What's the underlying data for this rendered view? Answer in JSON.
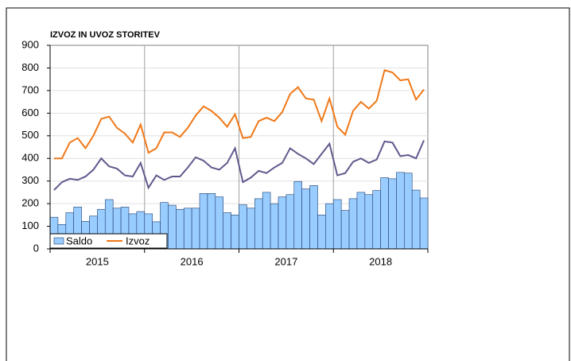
{
  "chart_data": {
    "type": "bar-line",
    "title": "IZVOZ IN UVOZ STORITEV",
    "groups": [
      "2015",
      "2016",
      "2017",
      "2018"
    ],
    "ylim": [
      0,
      900
    ],
    "yticks": [
      0,
      100,
      200,
      300,
      400,
      500,
      600,
      700,
      800,
      900
    ],
    "grid": true,
    "legend": "bottom-left",
    "series": [
      {
        "name": "Saldo",
        "kind": "bar",
        "color": "#99ccff",
        "values": [
          140,
          108,
          160,
          185,
          122,
          145,
          175,
          218,
          180,
          185,
          155,
          165,
          155,
          120,
          205,
          193,
          175,
          180,
          180,
          245,
          245,
          230,
          160,
          150,
          195,
          180,
          222,
          250,
          200,
          230,
          240,
          298,
          265,
          280,
          150,
          200,
          218,
          170,
          222,
          250,
          240,
          258,
          315,
          310,
          338,
          335,
          260,
          225
        ]
      },
      {
        "name": "Izvoz",
        "kind": "line",
        "color": "#f07818",
        "values": [
          400,
          400,
          470,
          490,
          445,
          500,
          575,
          585,
          535,
          510,
          470,
          550,
          425,
          445,
          515,
          515,
          495,
          535,
          590,
          630,
          610,
          580,
          540,
          595,
          490,
          495,
          565,
          580,
          565,
          605,
          685,
          715,
          665,
          660,
          565,
          665,
          540,
          505,
          610,
          650,
          620,
          655,
          790,
          780,
          745,
          750,
          660,
          705
        ]
      },
      {
        "kind": "line",
        "color": "#5f5a8c",
        "values": [
          260,
          295,
          310,
          305,
          320,
          350,
          400,
          365,
          355,
          325,
          320,
          380,
          270,
          325,
          305,
          320,
          320,
          360,
          405,
          390,
          360,
          350,
          380,
          445,
          295,
          315,
          345,
          335,
          360,
          380,
          445,
          420,
          400,
          375,
          420,
          465,
          325,
          335,
          385,
          400,
          380,
          395,
          475,
          470,
          410,
          415,
          400,
          480
        ]
      }
    ]
  }
}
